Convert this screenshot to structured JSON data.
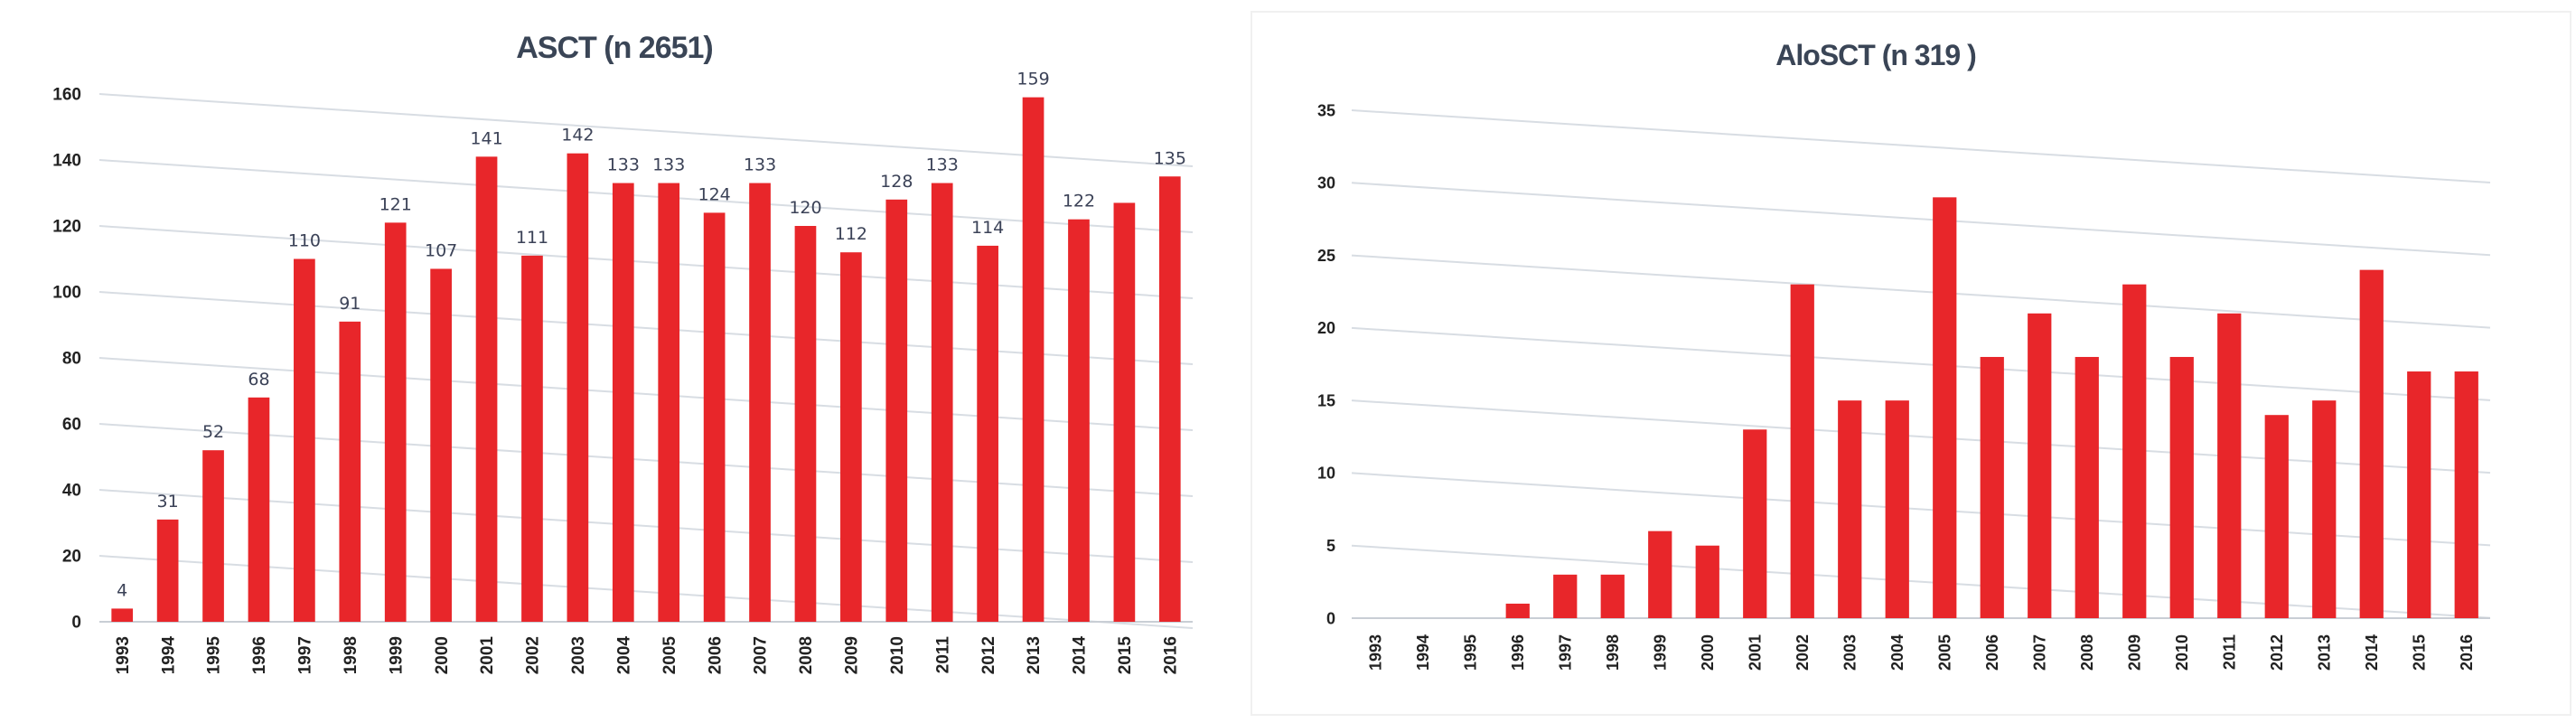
{
  "chart_data": [
    {
      "type": "bar",
      "title": "ASCT (n 2651)",
      "xlabel": "",
      "ylabel": "",
      "categories": [
        "1993",
        "1994",
        "1995",
        "1996",
        "1997",
        "1998",
        "1999",
        "2000",
        "2001",
        "2002",
        "2003",
        "2004",
        "2005",
        "2006",
        "2007",
        "2008",
        "2009",
        "2010",
        "2011",
        "2012",
        "2013",
        "2014",
        "2015",
        "2016"
      ],
      "values": [
        4,
        31,
        52,
        68,
        110,
        91,
        121,
        107,
        141,
        111,
        142,
        133,
        133,
        124,
        133,
        120,
        112,
        128,
        133,
        114,
        159,
        122,
        127,
        135
      ],
      "data_labels": [
        "4",
        "31",
        "52",
        "68",
        "110",
        "91",
        "121",
        "107",
        "141",
        "111",
        "142",
        "133",
        "133",
        "124",
        "133",
        "120",
        "112",
        "128",
        "133",
        "114",
        "159",
        "122",
        "",
        "135"
      ],
      "yticks": [
        "0",
        "20",
        "40",
        "60",
        "80",
        "100",
        "120",
        "140",
        "160"
      ],
      "ylim": [
        0,
        160
      ],
      "grid": true,
      "legend": "none",
      "bar_color": "#e8262a"
    },
    {
      "type": "bar",
      "title": "AloSCT (n 319 )",
      "xlabel": "",
      "ylabel": "",
      "categories": [
        "1993",
        "1994",
        "1995",
        "1996",
        "1997",
        "1998",
        "1999",
        "2000",
        "2001",
        "2002",
        "2003",
        "2004",
        "2005",
        "2006",
        "2007",
        "2008",
        "2009",
        "2010",
        "2011",
        "2012",
        "2013",
        "2014",
        "2015",
        "2016"
      ],
      "values": [
        0,
        0,
        0,
        1,
        3,
        3,
        6,
        5,
        13,
        23,
        15,
        15,
        29,
        18,
        21,
        18,
        23,
        18,
        21,
        14,
        15,
        24,
        17,
        17
      ],
      "yticks": [
        "0",
        "5",
        "10",
        "15",
        "20",
        "25",
        "30",
        "35"
      ],
      "ylim": [
        0,
        35
      ],
      "grid": true,
      "legend": "none",
      "bar_color": "#e8262a"
    }
  ]
}
